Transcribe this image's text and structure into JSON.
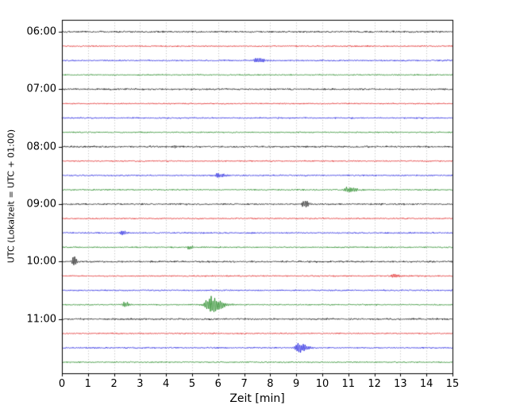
{
  "chart_data": {
    "type": "line",
    "subtype": "helicorder-seismogram",
    "title": "",
    "xlabel": "Zeit  [min]",
    "ylabel": "UTC (Lokalzeit = UTC + 01:00)",
    "xlim": [
      0,
      15
    ],
    "x_ticks": [
      "0",
      "1",
      "2",
      "3",
      "4",
      "5",
      "6",
      "7",
      "8",
      "9",
      "10",
      "11",
      "12",
      "13",
      "14",
      "15"
    ],
    "grid": "vertical dotted gridlines at each minute",
    "legend": "none",
    "minutes_per_row": 15,
    "trace_color_cycle": [
      "#000000",
      "#dd0000",
      "#0000dd",
      "#007700"
    ],
    "grid_color": "#aaaaaa",
    "frame_color": "#000000",
    "traces": [
      {
        "time": "06:00",
        "color": "#000000",
        "noise": 1.4,
        "events": []
      },
      {
        "time": "06:15",
        "color": "#dd0000",
        "noise": 1.0,
        "events": []
      },
      {
        "time": "06:30",
        "color": "#0000dd",
        "noise": 1.1,
        "events": [
          {
            "x": 7.5,
            "amp": 3.0,
            "sigma": 0.15
          }
        ]
      },
      {
        "time": "06:45",
        "color": "#007700",
        "noise": 1.0,
        "events": []
      },
      {
        "time": "07:00",
        "color": "#000000",
        "noise": 1.4,
        "events": []
      },
      {
        "time": "07:15",
        "color": "#dd0000",
        "noise": 1.0,
        "events": []
      },
      {
        "time": "07:30",
        "color": "#0000dd",
        "noise": 1.1,
        "events": []
      },
      {
        "time": "07:45",
        "color": "#007700",
        "noise": 1.0,
        "events": []
      },
      {
        "time": "08:00",
        "color": "#000000",
        "noise": 1.4,
        "events": [
          {
            "x": 4.3,
            "amp": 1.8,
            "sigma": 0.1
          }
        ]
      },
      {
        "time": "08:15",
        "color": "#dd0000",
        "noise": 1.0,
        "events": []
      },
      {
        "time": "08:30",
        "color": "#0000dd",
        "noise": 1.1,
        "events": [
          {
            "x": 6.0,
            "amp": 2.5,
            "sigma": 0.2
          }
        ]
      },
      {
        "time": "08:45",
        "color": "#007700",
        "noise": 1.0,
        "events": [
          {
            "x": 11.0,
            "amp": 3.2,
            "sigma": 0.2
          }
        ]
      },
      {
        "time": "09:00",
        "color": "#000000",
        "noise": 1.4,
        "events": [
          {
            "x": 9.3,
            "amp": 4.5,
            "sigma": 0.1
          }
        ]
      },
      {
        "time": "09:15",
        "color": "#dd0000",
        "noise": 1.0,
        "events": []
      },
      {
        "time": "09:30",
        "color": "#0000dd",
        "noise": 1.1,
        "events": [
          {
            "x": 2.3,
            "amp": 2.8,
            "sigma": 0.12
          }
        ]
      },
      {
        "time": "09:45",
        "color": "#007700",
        "noise": 1.0,
        "events": [
          {
            "x": 4.9,
            "amp": 2.2,
            "sigma": 0.1
          }
        ]
      },
      {
        "time": "10:00",
        "color": "#000000",
        "noise": 1.4,
        "events": [
          {
            "x": 0.45,
            "amp": 7.0,
            "sigma": 0.07
          }
        ]
      },
      {
        "time": "10:15",
        "color": "#dd0000",
        "noise": 1.0,
        "events": [
          {
            "x": 12.7,
            "amp": 2.6,
            "sigma": 0.15
          }
        ]
      },
      {
        "time": "10:30",
        "color": "#0000dd",
        "noise": 1.1,
        "events": []
      },
      {
        "time": "10:45",
        "color": "#007700",
        "noise": 1.0,
        "events": [
          {
            "x": 2.4,
            "amp": 3.5,
            "sigma": 0.1
          },
          {
            "x": 5.7,
            "amp": 9.0,
            "sigma": 0.25
          }
        ]
      },
      {
        "time": "11:00",
        "color": "#000000",
        "noise": 1.4,
        "events": []
      },
      {
        "time": "11:15",
        "color": "#dd0000",
        "noise": 1.0,
        "events": []
      },
      {
        "time": "11:30",
        "color": "#0000dd",
        "noise": 1.1,
        "events": [
          {
            "x": 9.1,
            "amp": 6.0,
            "sigma": 0.18
          }
        ]
      },
      {
        "time": "11:45",
        "color": "#007700",
        "noise": 1.0,
        "events": []
      }
    ]
  }
}
